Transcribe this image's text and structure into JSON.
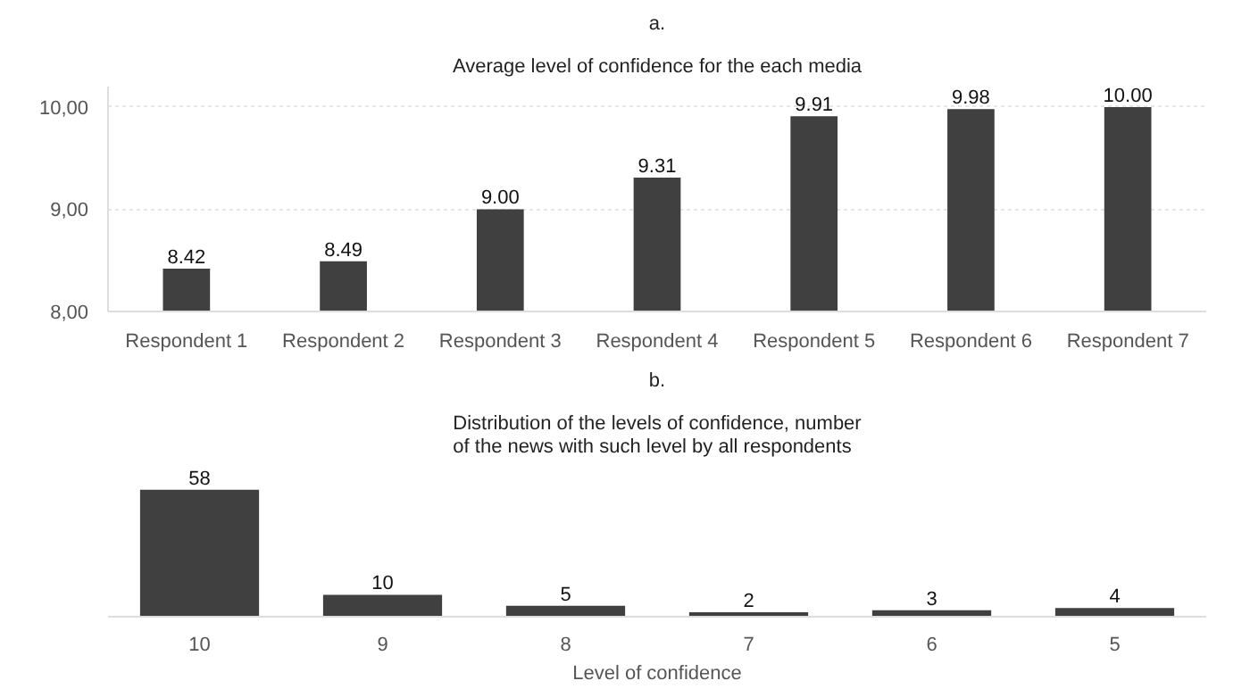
{
  "chart_data": [
    {
      "type": "bar",
      "title": "a.",
      "subtitle": "Average level of confidence for the each media",
      "categories": [
        "Respondent 1",
        "Respondent 2",
        "Respondent 3",
        "Respondent 4",
        "Respondent 5",
        "Respondent 6",
        "Respondent 7"
      ],
      "values": [
        8.42,
        8.49,
        9.0,
        9.31,
        9.91,
        9.98,
        10.0
      ],
      "value_labels": [
        "8.42",
        "8.49",
        "9.00",
        "9.31",
        "9.91",
        "9.98",
        "10.00"
      ],
      "color": "#404040",
      "ylim": [
        8,
        10.2
      ],
      "yticks": [
        {
          "value": 8,
          "label": "8,00"
        },
        {
          "value": 9,
          "label": "9,00"
        },
        {
          "value": 10,
          "label": "10,00"
        }
      ],
      "grid": "y"
    },
    {
      "type": "bar",
      "title": "b.",
      "subtitle": "Distribution of the levels of confidence, number\nof the news with such level by all respondents",
      "categories": [
        "10",
        "9",
        "8",
        "7",
        "6",
        "5"
      ],
      "values": [
        58,
        10,
        5,
        2,
        3,
        4
      ],
      "data_labels": true,
      "color": "#404040",
      "xlabel": "Level of confidence",
      "tick_labels": "x"
    }
  ]
}
